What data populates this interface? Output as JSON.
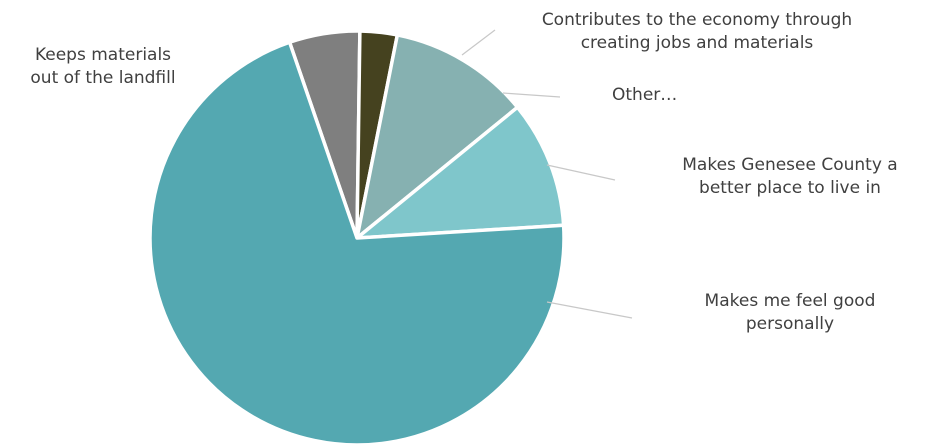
{
  "chart_data": {
    "type": "pie",
    "title": "",
    "legend": "none",
    "slices": [
      {
        "name": "Contributes to the economy through creating jobs and materials",
        "label_lines": [
          "Contributes to the economy through",
          "creating jobs and materials"
        ],
        "value": 5.5,
        "color": "#7f7f7f"
      },
      {
        "name": "Other…",
        "label_lines": [
          "Other…"
        ],
        "value": 2.9,
        "color": "#45421f"
      },
      {
        "name": "Makes Genesee County a better place to live in",
        "label_lines": [
          "Makes Genesee County a",
          "better place to live in"
        ],
        "value": 11.0,
        "color": "#86b1b1"
      },
      {
        "name": "Makes me feel good personally",
        "label_lines": [
          "Makes me feel good",
          "personally"
        ],
        "value": 9.9,
        "color": "#7fc6cb"
      },
      {
        "name": "Keeps materials out of the landfill",
        "label_lines": [
          "Keeps materials",
          "out of the landfill"
        ],
        "value": 70.7,
        "color": "#54a8b1"
      }
    ]
  }
}
